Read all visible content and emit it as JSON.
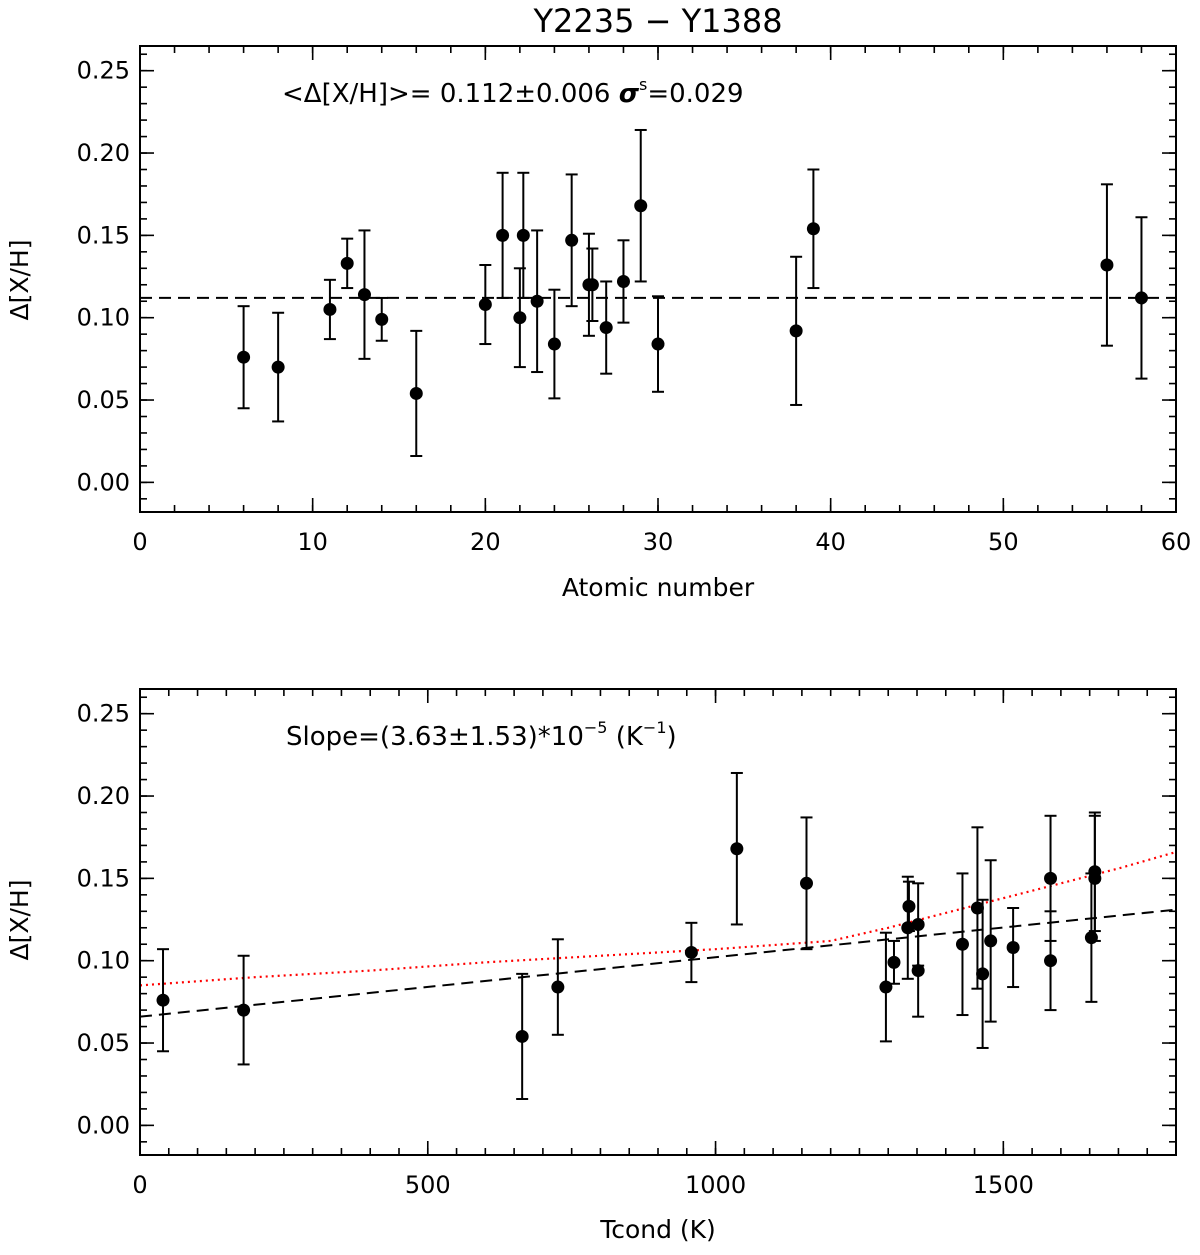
{
  "chart_data": [
    {
      "type": "scatter",
      "title": "Y2235 − Y1388",
      "xlabel": "Atomic number",
      "ylabel": "Δ[X/H]",
      "xlim": [
        0,
        60
      ],
      "ylim": [
        -0.018,
        0.265
      ],
      "xticks": [
        0,
        10,
        20,
        30,
        40,
        50,
        60
      ],
      "xtick_labels": [
        "0",
        "10",
        "20",
        "30",
        "40",
        "50",
        "60"
      ],
      "yticks": [
        0.0,
        0.05,
        0.1,
        0.15,
        0.2,
        0.25
      ],
      "ytick_labels": [
        "0.00",
        "0.05",
        "0.10",
        "0.15",
        "0.20",
        "0.25"
      ],
      "annotation_prefix": "<Δ[X/H]>= 0.112±0.006 ",
      "annotation_sigma": "σ",
      "annotation_sigma_sup": "s",
      "annotation_suffix": "=0.029",
      "mean_line": 0.112,
      "points": [
        {
          "x": 6,
          "y": 0.076,
          "err": 0.031
        },
        {
          "x": 8,
          "y": 0.07,
          "err": 0.033
        },
        {
          "x": 11,
          "y": 0.105,
          "err": 0.018
        },
        {
          "x": 12,
          "y": 0.133,
          "err": 0.015
        },
        {
          "x": 13,
          "y": 0.114,
          "err": 0.039
        },
        {
          "x": 14,
          "y": 0.099,
          "err": 0.013
        },
        {
          "x": 16,
          "y": 0.054,
          "err": 0.038
        },
        {
          "x": 20,
          "y": 0.108,
          "err": 0.024
        },
        {
          "x": 21,
          "y": 0.15,
          "err": 0.038
        },
        {
          "x": 22,
          "y": 0.1,
          "err": 0.03
        },
        {
          "x": 22.2,
          "y": 0.15,
          "err": 0.038
        },
        {
          "x": 23,
          "y": 0.11,
          "err": 0.043
        },
        {
          "x": 24,
          "y": 0.084,
          "err": 0.033
        },
        {
          "x": 25,
          "y": 0.147,
          "err": 0.04
        },
        {
          "x": 26,
          "y": 0.12,
          "err": 0.031
        },
        {
          "x": 26.2,
          "y": 0.12,
          "err": 0.022
        },
        {
          "x": 27,
          "y": 0.094,
          "err": 0.028
        },
        {
          "x": 28,
          "y": 0.122,
          "err": 0.025
        },
        {
          "x": 29,
          "y": 0.168,
          "err": 0.046
        },
        {
          "x": 30,
          "y": 0.084,
          "err": 0.029
        },
        {
          "x": 38,
          "y": 0.092,
          "err": 0.045
        },
        {
          "x": 39,
          "y": 0.154,
          "err": 0.036
        },
        {
          "x": 56,
          "y": 0.132,
          "err": 0.049
        },
        {
          "x": 58,
          "y": 0.112,
          "err": 0.049
        }
      ]
    },
    {
      "type": "scatter",
      "xlabel": "Tcond (K)",
      "ylabel": "Δ[X/H]",
      "xlim": [
        0,
        1800
      ],
      "ylim": [
        -0.018,
        0.265
      ],
      "xticks": [
        0,
        500,
        1000,
        1500
      ],
      "xtick_labels": [
        "0",
        "500",
        "1000",
        "1500"
      ],
      "yticks": [
        0.0,
        0.05,
        0.1,
        0.15,
        0.2,
        0.25
      ],
      "ytick_labels": [
        "0.00",
        "0.05",
        "0.10",
        "0.15",
        "0.20",
        "0.25"
      ],
      "annotation_prefix": "Slope=(3.63±1.53)*10",
      "annotation_exp": "−5",
      "annotation_mid": " (K",
      "annotation_unit_exp": "−1",
      "annotation_end": ")",
      "fit_line": {
        "x": [
          0,
          1800
        ],
        "y": [
          0.066,
          0.131
        ]
      },
      "fit_red": {
        "x": [
          0,
          200,
          400,
          600,
          800,
          1000,
          1200,
          1300,
          1400,
          1500,
          1600,
          1700,
          1800
        ],
        "y": [
          0.085,
          0.09,
          0.094,
          0.099,
          0.103,
          0.107,
          0.112,
          0.12,
          0.129,
          0.138,
          0.147,
          0.156,
          0.166
        ]
      },
      "points": [
        {
          "x": 40,
          "y": 0.076,
          "err": 0.031
        },
        {
          "x": 180,
          "y": 0.07,
          "err": 0.033
        },
        {
          "x": 664,
          "y": 0.054,
          "err": 0.038
        },
        {
          "x": 726,
          "y": 0.084,
          "err": 0.029
        },
        {
          "x": 958,
          "y": 0.105,
          "err": 0.018
        },
        {
          "x": 1037,
          "y": 0.168,
          "err": 0.046
        },
        {
          "x": 1158,
          "y": 0.147,
          "err": 0.04
        },
        {
          "x": 1296,
          "y": 0.084,
          "err": 0.033
        },
        {
          "x": 1310,
          "y": 0.099,
          "err": 0.013
        },
        {
          "x": 1334,
          "y": 0.12,
          "err": 0.031
        },
        {
          "x": 1336,
          "y": 0.133,
          "err": 0.015
        },
        {
          "x": 1352,
          "y": 0.122,
          "err": 0.025
        },
        {
          "x": 1352,
          "y": 0.094,
          "err": 0.028
        },
        {
          "x": 1429,
          "y": 0.11,
          "err": 0.043
        },
        {
          "x": 1455,
          "y": 0.132,
          "err": 0.049
        },
        {
          "x": 1464,
          "y": 0.092,
          "err": 0.045
        },
        {
          "x": 1478,
          "y": 0.112,
          "err": 0.049
        },
        {
          "x": 1517,
          "y": 0.108,
          "err": 0.024
        },
        {
          "x": 1582,
          "y": 0.15,
          "err": 0.038
        },
        {
          "x": 1582,
          "y": 0.1,
          "err": 0.03
        },
        {
          "x": 1653,
          "y": 0.114,
          "err": 0.039
        },
        {
          "x": 1659,
          "y": 0.154,
          "err": 0.036
        },
        {
          "x": 1659,
          "y": 0.15,
          "err": 0.038
        }
      ]
    }
  ]
}
